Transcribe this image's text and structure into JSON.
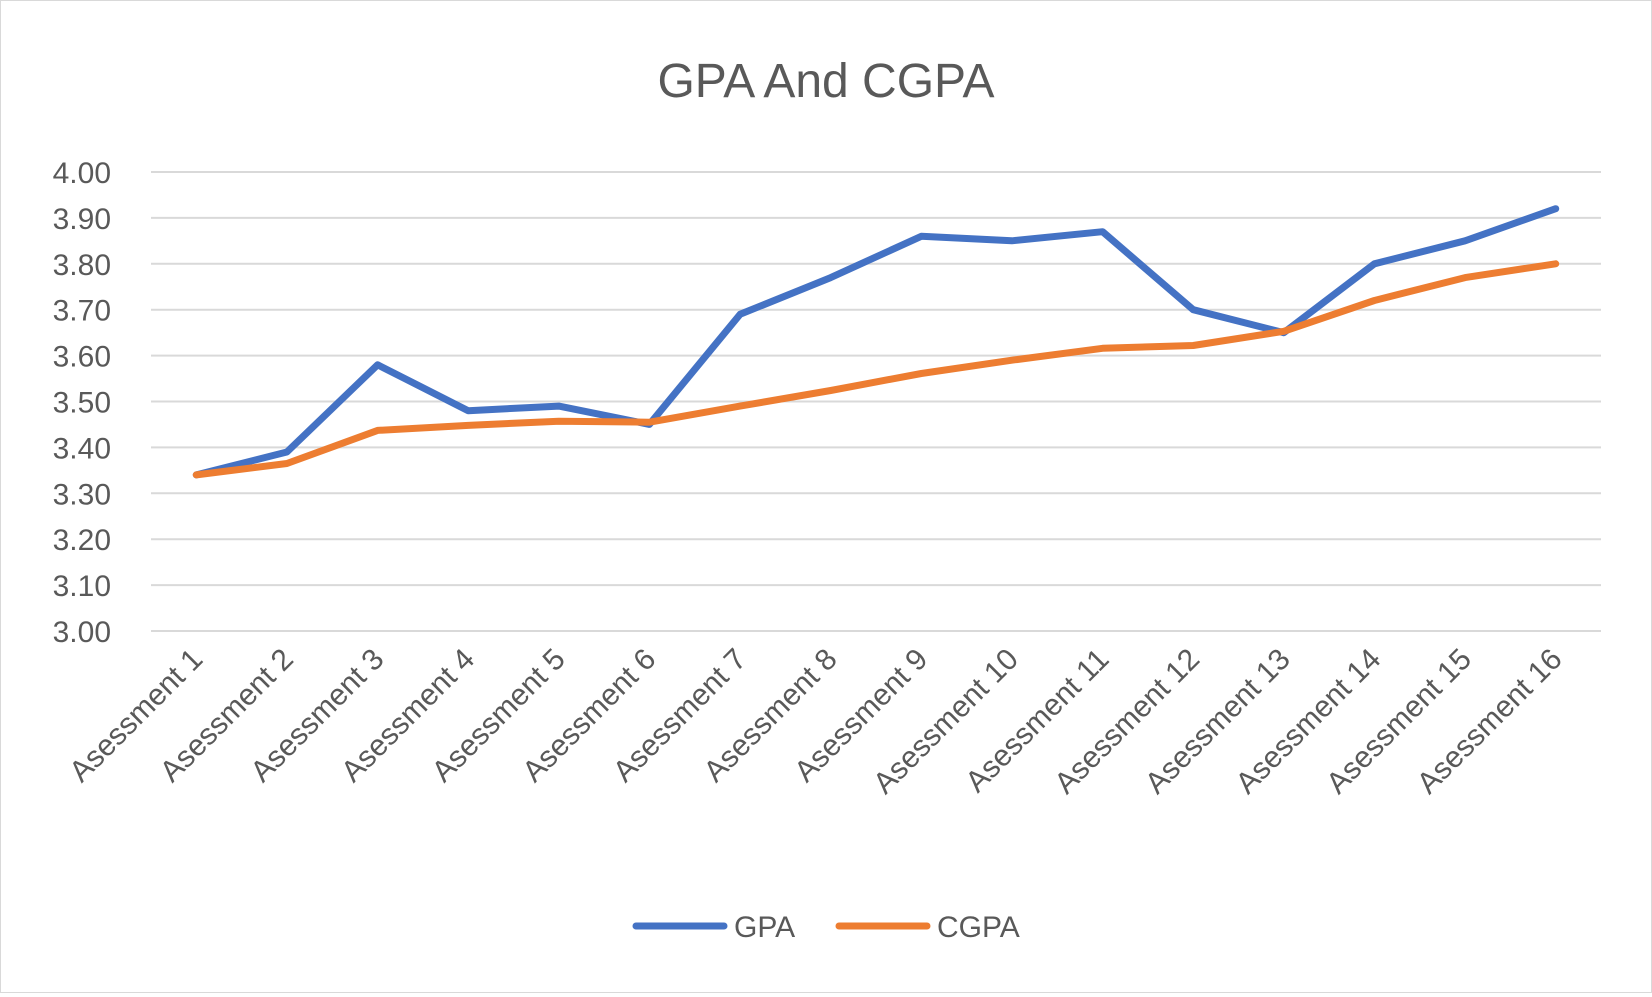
{
  "chart_data": {
    "type": "line",
    "title": "GPA And CGPA",
    "xlabel": "",
    "ylabel": "",
    "categories": [
      "Asessment 1",
      "Asessment 2",
      "Asessment 3",
      "Asessment 4",
      "Asessment 5",
      "Asessment 6",
      "Asessment 7",
      "Asessment 8",
      "Asessment 9",
      "Asessment 10",
      "Asessment 11",
      "Asessment 12",
      "Asessment 13",
      "Asessment 14",
      "Asessment 15",
      "Asessment 16"
    ],
    "ylim": [
      3.0,
      4.0
    ],
    "yticks": [
      "3.00",
      "3.10",
      "3.20",
      "3.30",
      "3.40",
      "3.50",
      "3.60",
      "3.70",
      "3.80",
      "3.90",
      "4.00"
    ],
    "grid": true,
    "legend_position": "bottom",
    "series": [
      {
        "name": "GPA",
        "color": "#4472c4",
        "values": [
          3.34,
          3.39,
          3.58,
          3.48,
          3.49,
          3.45,
          3.69,
          3.77,
          3.86,
          3.85,
          3.87,
          3.7,
          3.65,
          3.8,
          3.85,
          3.92
        ]
      },
      {
        "name": "CGPA",
        "color": "#ed7d31",
        "values": [
          3.34,
          3.365,
          3.437,
          3.448,
          3.457,
          3.455,
          3.49,
          3.524,
          3.561,
          3.59,
          3.616,
          3.622,
          3.653,
          3.72,
          3.77,
          3.8
        ]
      }
    ]
  }
}
